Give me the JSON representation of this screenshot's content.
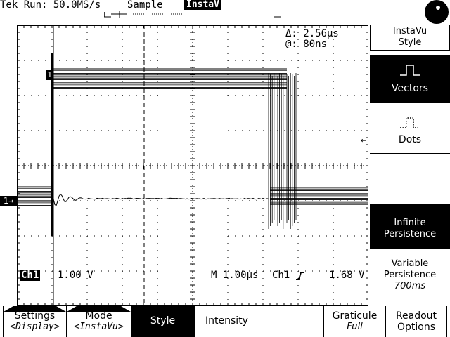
{
  "header": {
    "title": "Tek Run: 50.0MS/s",
    "acq_mode": "Sample",
    "badge": "InstaV"
  },
  "cursor_readout": {
    "delta": "Δ: 2.56µs",
    "at": "@: 80ns"
  },
  "channel_marker": "1",
  "ground_marker": "1→",
  "status": {
    "channel": "Ch1",
    "volts_div": "1.00 V",
    "timebase": "M 1.00µs",
    "trigger_channel": "Ch1",
    "trigger_slope_icon": "rising-edge-icon",
    "trigger_level": "1.68 V"
  },
  "side_menu": {
    "title_line1": "InstaVu",
    "title_line2": "Style",
    "vectors": "Vectors",
    "dots": "Dots",
    "infinite_line1": "Infinite",
    "infinite_line2": "Persistence",
    "variable_line1": "Variable",
    "variable_line2": "Persistence",
    "variable_value": "700ms"
  },
  "bottom_menu": {
    "settings": "Settings",
    "settings_value": "<Display>",
    "mode": "Mode",
    "mode_value": "<InstaVu>",
    "style": "Style",
    "intensity": "Intensity",
    "graticule": "Graticule",
    "graticule_value": "Full",
    "readout": "Readout",
    "readout_value": "Options"
  },
  "colors": {
    "foreground": "#000000",
    "background": "#ffffff"
  }
}
